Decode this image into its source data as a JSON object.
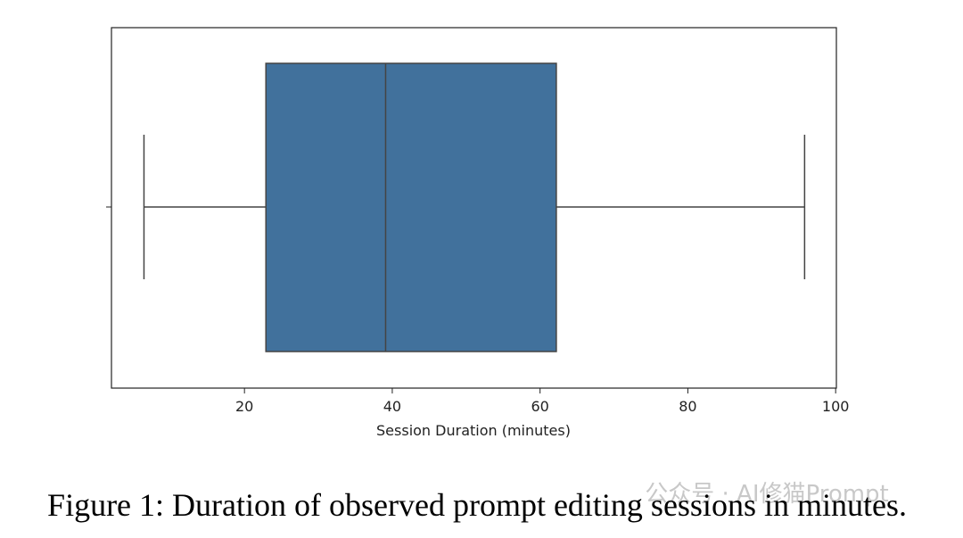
{
  "chart_data": {
    "type": "box",
    "xlabel": "Session Duration (minutes)",
    "caption": "Figure 1: Duration of observed prompt editing sessions in minutes.",
    "watermark": "公众号 · AI修猫Prompt",
    "whislo": 6.4,
    "q1": 22.9,
    "median": 39.1,
    "q3": 62.2,
    "whishi": 95.8,
    "color": "#41719c",
    "xlim": [
      2,
      100.1
    ],
    "xticks": [
      20,
      40,
      60,
      80,
      100
    ],
    "grid": false
  }
}
